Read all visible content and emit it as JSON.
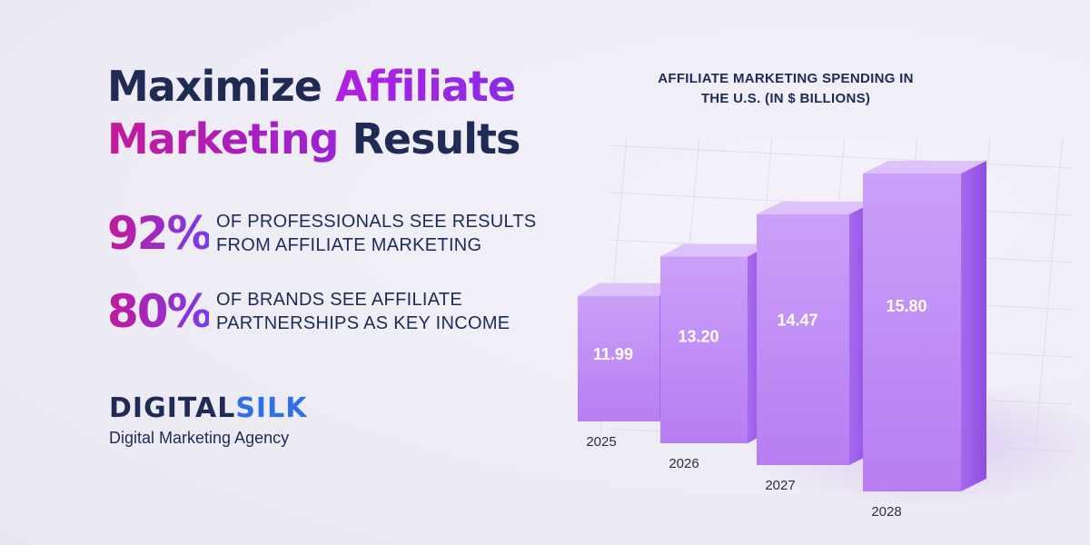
{
  "headline": {
    "part1": "Maximize ",
    "accent1": "Affiliate",
    "accent2": "Marketing",
    "part2": " Results"
  },
  "stats": [
    {
      "value": "92%",
      "line1": "OF PROFESSIONALS SEE RESULTS",
      "line2": "FROM AFFILIATE MARKETING"
    },
    {
      "value": "80%",
      "line1": "OF BRANDS SEE AFFILIATE",
      "line2": "PARTNERSHIPS AS KEY INCOME"
    }
  ],
  "brand": {
    "name_part1": "DIGITAL",
    "name_part2": "SILK",
    "tagline": "Digital Marketing Agency"
  },
  "colors": {
    "navy": "#1f2a55",
    "accent_pink": "#c21a9a",
    "accent_purple": "#8a2be8",
    "bar_front": "#c48bf6",
    "bar_top": "#dcc1fb",
    "bar_side": "#9d5be8",
    "brand_blue": "#2f6fe8"
  },
  "chart_data": {
    "type": "bar",
    "title": "AFFILIATE MARKETING SPENDING IN THE U.S. (IN $ BILLIONS)",
    "title_lines": [
      "AFFILIATE MARKETING SPENDING IN",
      "THE U.S. (IN $ BILLIONS)"
    ],
    "categories": [
      "2025",
      "2026",
      "2027",
      "2028"
    ],
    "values": [
      11.99,
      13.2,
      14.47,
      15.8
    ],
    "value_labels": [
      "11.99",
      "13.20",
      "14.47",
      "15.80"
    ],
    "xlabel": "",
    "ylabel": "",
    "grid": true,
    "style": "3d-isometric"
  }
}
